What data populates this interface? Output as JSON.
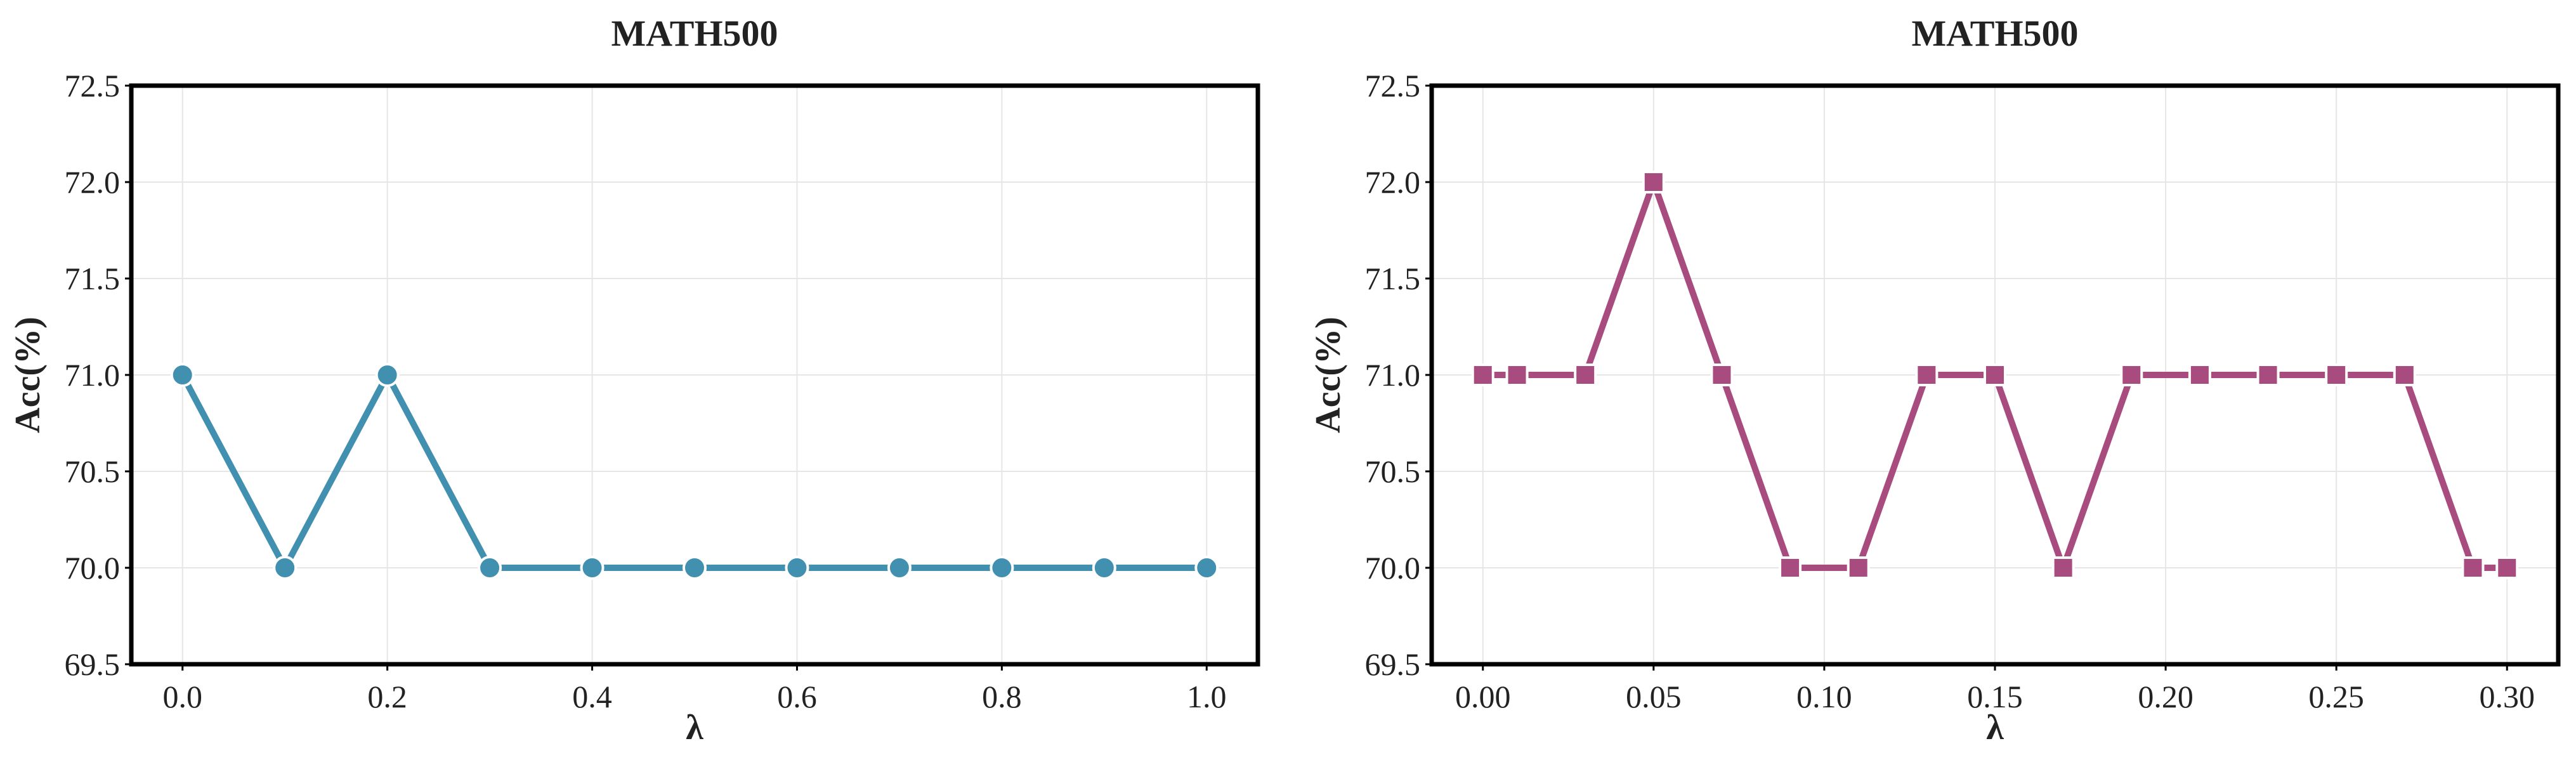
{
  "chart_data": [
    {
      "type": "line",
      "title": "MATH500",
      "xlabel": "λ",
      "ylabel": "Acc(%)",
      "xlim": [
        -0.05,
        1.05
      ],
      "ylim": [
        69.5,
        72.5
      ],
      "xticks": [
        0.0,
        0.2,
        0.4,
        0.6,
        0.8,
        1.0
      ],
      "xtick_labels": [
        "0.0",
        "0.2",
        "0.4",
        "0.6",
        "0.8",
        "1.0"
      ],
      "yticks": [
        69.5,
        70.0,
        70.5,
        71.0,
        71.5,
        72.0,
        72.5
      ],
      "ytick_labels": [
        "69.5",
        "70.0",
        "70.5",
        "71.0",
        "71.5",
        "72.0",
        "72.5"
      ],
      "grid": true,
      "marker": "circle",
      "color": "#4290b0",
      "series": [
        {
          "x": [
            0.0,
            0.1,
            0.2,
            0.3,
            0.4,
            0.5,
            0.6,
            0.7,
            0.8,
            0.9,
            1.0
          ],
          "y": [
            71.0,
            70.0,
            71.0,
            70.0,
            70.0,
            70.0,
            70.0,
            70.0,
            70.0,
            70.0,
            70.0
          ]
        }
      ]
    },
    {
      "type": "line",
      "title": "MATH500",
      "xlabel": "λ",
      "ylabel": "Acc(%)",
      "xlim": [
        -0.015,
        0.315
      ],
      "ylim": [
        69.5,
        72.5
      ],
      "xticks": [
        0.0,
        0.05,
        0.1,
        0.15,
        0.2,
        0.25,
        0.3
      ],
      "xtick_labels": [
        "0.00",
        "0.05",
        "0.10",
        "0.15",
        "0.20",
        "0.25",
        "0.30"
      ],
      "yticks": [
        69.5,
        70.0,
        70.5,
        71.0,
        71.5,
        72.0,
        72.5
      ],
      "ytick_labels": [
        "69.5",
        "70.0",
        "70.5",
        "71.0",
        "71.5",
        "72.0",
        "72.5"
      ],
      "grid": true,
      "marker": "square",
      "color": "#a84c80",
      "series": [
        {
          "x": [
            0.0,
            0.01,
            0.03,
            0.05,
            0.07,
            0.09,
            0.11,
            0.13,
            0.15,
            0.17,
            0.19,
            0.21,
            0.23,
            0.25,
            0.27,
            0.29,
            0.3
          ],
          "y": [
            71.0,
            71.0,
            71.0,
            72.0,
            71.0,
            70.0,
            70.0,
            71.0,
            71.0,
            70.0,
            71.0,
            71.0,
            71.0,
            71.0,
            71.0,
            70.0,
            70.0
          ]
        }
      ]
    }
  ]
}
